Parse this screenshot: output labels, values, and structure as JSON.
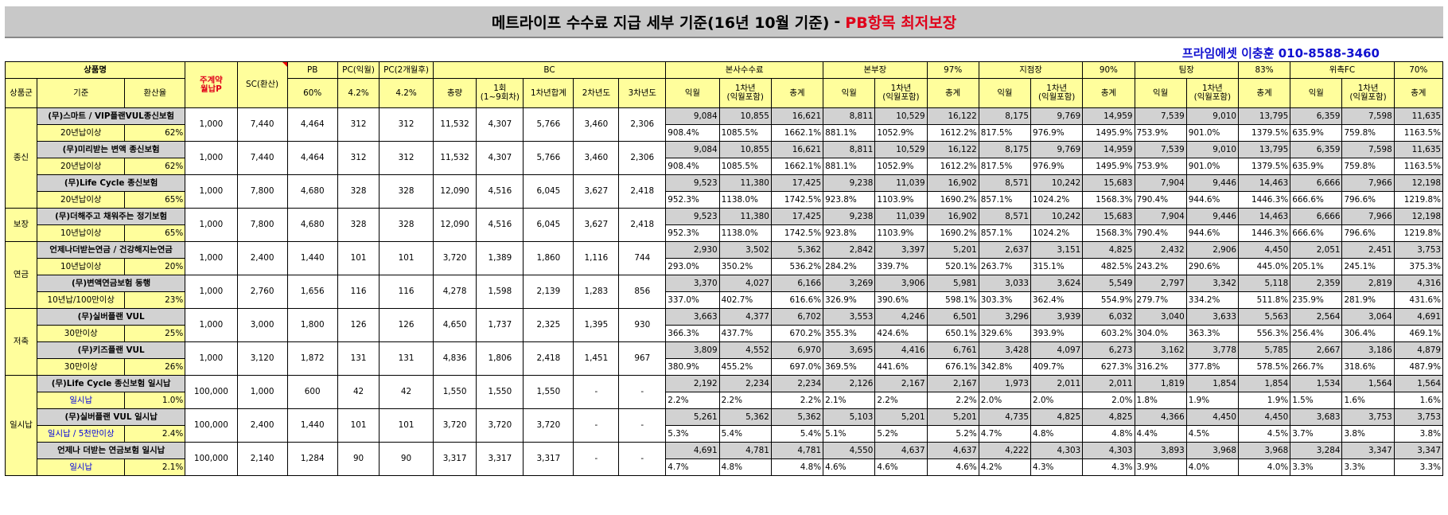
{
  "title": {
    "main": "메트라이프 수수료 지급 세부 기준(16년 10월 기준)",
    "sep": "-",
    "highlight": "PB항목 최저보장"
  },
  "contact": "프라임에셋 이충훈 010-8588-3460",
  "header1": {
    "product": "상품명",
    "premium": "주계약\n월납P",
    "sc": "SC(환산)",
    "pb": "PB",
    "pc1": "PC(익월)",
    "pc2": "PC(2개월후)",
    "bc": "BC",
    "hq": "본사수수료",
    "division": "본부장",
    "division_pct": "97%",
    "branch": "지점장",
    "branch_pct": "90%",
    "team": "팀장",
    "team_pct": "83%",
    "fc": "위촉FC",
    "fc_pct": "70%"
  },
  "header2": {
    "group": "상품군",
    "basis": "기준",
    "rate": "환산율",
    "pb_pct": "60%",
    "pc1_pct": "4.2%",
    "pc2_pct": "4.2%",
    "total": "총량",
    "first": "1회\n(1~9회차)",
    "y1": "1차년합계",
    "y2": "2차년도",
    "y3": "3차년도",
    "next": "익월",
    "year1": "1차년\n(익월포함)",
    "sum": "총계"
  },
  "groups": [
    {
      "label": "종신",
      "products": [
        {
          "name": "(무)스마트 / VIP플랜VUL종신보험",
          "basis": "20년납이상",
          "rate": "62%",
          "premium": "1,000",
          "sc": "7,440",
          "pb": "4,464",
          "pc1": "312",
          "pc2": "312",
          "bc": [
            "11,532",
            "4,307",
            "5,766",
            "3,460",
            "2,306"
          ],
          "amt": [
            "9,084",
            "10,855",
            "16,621",
            "8,811",
            "10,529",
            "16,122",
            "8,175",
            "9,769",
            "14,959",
            "7,539",
            "9,010",
            "13,795",
            "6,359",
            "7,598",
            "11,635"
          ],
          "pct": [
            "908.4%",
            "1085.5%",
            "1662.1%",
            "881.1%",
            "1052.9%",
            "1612.2%",
            "817.5%",
            "976.9%",
            "1495.9%",
            "753.9%",
            "901.0%",
            "1379.5%",
            "635.9%",
            "759.8%",
            "1163.5%"
          ]
        },
        {
          "name": "(무)미리받는 변액 종신보험",
          "basis": "20년납이상",
          "rate": "62%",
          "premium": "1,000",
          "sc": "7,440",
          "pb": "4,464",
          "pc1": "312",
          "pc2": "312",
          "bc": [
            "11,532",
            "4,307",
            "5,766",
            "3,460",
            "2,306"
          ],
          "amt": [
            "9,084",
            "10,855",
            "16,621",
            "8,811",
            "10,529",
            "16,122",
            "8,175",
            "9,769",
            "14,959",
            "7,539",
            "9,010",
            "13,795",
            "6,359",
            "7,598",
            "11,635"
          ],
          "pct": [
            "908.4%",
            "1085.5%",
            "1662.1%",
            "881.1%",
            "1052.9%",
            "1612.2%",
            "817.5%",
            "976.9%",
            "1495.9%",
            "753.9%",
            "901.0%",
            "1379.5%",
            "635.9%",
            "759.8%",
            "1163.5%"
          ]
        },
        {
          "name": "(무)Life Cycle 종신보험",
          "basis": "20년납이상",
          "rate": "65%",
          "premium": "1,000",
          "sc": "7,800",
          "pb": "4,680",
          "pc1": "328",
          "pc2": "328",
          "bc": [
            "12,090",
            "4,516",
            "6,045",
            "3,627",
            "2,418"
          ],
          "amt": [
            "9,523",
            "11,380",
            "17,425",
            "9,238",
            "11,039",
            "16,902",
            "8,571",
            "10,242",
            "15,683",
            "7,904",
            "9,446",
            "14,463",
            "6,666",
            "7,966",
            "12,198"
          ],
          "pct": [
            "952.3%",
            "1138.0%",
            "1742.5%",
            "923.8%",
            "1103.9%",
            "1690.2%",
            "857.1%",
            "1024.2%",
            "1568.3%",
            "790.4%",
            "944.6%",
            "1446.3%",
            "666.6%",
            "796.6%",
            "1219.8%"
          ]
        }
      ]
    },
    {
      "label": "보장",
      "products": [
        {
          "name": "(무)더해주고 채워주는 정기보험",
          "basis": "10년납이상",
          "rate": "65%",
          "premium": "1,000",
          "sc": "7,800",
          "pb": "4,680",
          "pc1": "328",
          "pc2": "328",
          "bc": [
            "12,090",
            "4,516",
            "6,045",
            "3,627",
            "2,418"
          ],
          "amt": [
            "9,523",
            "11,380",
            "17,425",
            "9,238",
            "11,039",
            "16,902",
            "8,571",
            "10,242",
            "15,683",
            "7,904",
            "9,446",
            "14,463",
            "6,666",
            "7,966",
            "12,198"
          ],
          "pct": [
            "952.3%",
            "1138.0%",
            "1742.5%",
            "923.8%",
            "1103.9%",
            "1690.2%",
            "857.1%",
            "1024.2%",
            "1568.3%",
            "790.4%",
            "944.6%",
            "1446.3%",
            "666.6%",
            "796.6%",
            "1219.8%"
          ]
        }
      ]
    },
    {
      "label": "연금",
      "products": [
        {
          "name": "언제나더받는연금 / 건강해지는연금",
          "basis": "10년납이상",
          "rate": "20%",
          "premium": "1,000",
          "sc": "2,400",
          "pb": "1,440",
          "pc1": "101",
          "pc2": "101",
          "bc": [
            "3,720",
            "1,389",
            "1,860",
            "1,116",
            "744"
          ],
          "amt": [
            "2,930",
            "3,502",
            "5,362",
            "2,842",
            "3,397",
            "5,201",
            "2,637",
            "3,151",
            "4,825",
            "2,432",
            "2,906",
            "4,450",
            "2,051",
            "2,451",
            "3,753"
          ],
          "pct": [
            "293.0%",
            "350.2%",
            "536.2%",
            "284.2%",
            "339.7%",
            "520.1%",
            "263.7%",
            "315.1%",
            "482.5%",
            "243.2%",
            "290.6%",
            "445.0%",
            "205.1%",
            "245.1%",
            "375.3%"
          ]
        },
        {
          "name": "(무)변액연금보험 동행",
          "basis": "10년납/100만이상",
          "rate": "23%",
          "premium": "1,000",
          "sc": "2,760",
          "pb": "1,656",
          "pc1": "116",
          "pc2": "116",
          "bc": [
            "4,278",
            "1,598",
            "2,139",
            "1,283",
            "856"
          ],
          "amt": [
            "3,370",
            "4,027",
            "6,166",
            "3,269",
            "3,906",
            "5,981",
            "3,033",
            "3,624",
            "5,549",
            "2,797",
            "3,342",
            "5,118",
            "2,359",
            "2,819",
            "4,316"
          ],
          "pct": [
            "337.0%",
            "402.7%",
            "616.6%",
            "326.9%",
            "390.6%",
            "598.1%",
            "303.3%",
            "362.4%",
            "554.9%",
            "279.7%",
            "334.2%",
            "511.8%",
            "235.9%",
            "281.9%",
            "431.6%"
          ]
        }
      ]
    },
    {
      "label": "저축",
      "products": [
        {
          "name": "(무)실버플랜 VUL",
          "basis": "30만이상",
          "rate": "25%",
          "premium": "1,000",
          "sc": "3,000",
          "pb": "1,800",
          "pc1": "126",
          "pc2": "126",
          "bc": [
            "4,650",
            "1,737",
            "2,325",
            "1,395",
            "930"
          ],
          "amt": [
            "3,663",
            "4,377",
            "6,702",
            "3,553",
            "4,246",
            "6,501",
            "3,296",
            "3,939",
            "6,032",
            "3,040",
            "3,633",
            "5,563",
            "2,564",
            "3,064",
            "4,691"
          ],
          "pct": [
            "366.3%",
            "437.7%",
            "670.2%",
            "355.3%",
            "424.6%",
            "650.1%",
            "329.6%",
            "393.9%",
            "603.2%",
            "304.0%",
            "363.3%",
            "556.3%",
            "256.4%",
            "306.4%",
            "469.1%"
          ]
        },
        {
          "name": "(무)키즈플랜 VUL",
          "basis": "30만이상",
          "rate": "26%",
          "premium": "1,000",
          "sc": "3,120",
          "pb": "1,872",
          "pc1": "131",
          "pc2": "131",
          "bc": [
            "4,836",
            "1,806",
            "2,418",
            "1,451",
            "967"
          ],
          "amt": [
            "3,809",
            "4,552",
            "6,970",
            "3,695",
            "4,416",
            "6,761",
            "3,428",
            "4,097",
            "6,273",
            "3,162",
            "3,778",
            "5,785",
            "2,667",
            "3,186",
            "4,879"
          ],
          "pct": [
            "380.9%",
            "455.2%",
            "697.0%",
            "369.5%",
            "441.6%",
            "676.1%",
            "342.8%",
            "409.7%",
            "627.3%",
            "316.2%",
            "377.8%",
            "578.5%",
            "266.7%",
            "318.6%",
            "487.9%"
          ]
        }
      ]
    },
    {
      "label": "일시납",
      "products": [
        {
          "name": "(무)Life Cycle 종신보험 일시납",
          "basis": "일시납",
          "rate": "1.0%",
          "premium": "100,000",
          "sc": "1,000",
          "pb": "600",
          "pc1": "42",
          "pc2": "42",
          "bc": [
            "1,550",
            "1,550",
            "1,550",
            "-",
            "-"
          ],
          "amt": [
            "2,192",
            "2,234",
            "2,234",
            "2,126",
            "2,167",
            "2,167",
            "1,973",
            "2,011",
            "2,011",
            "1,819",
            "1,854",
            "1,854",
            "1,534",
            "1,564",
            "1,564"
          ],
          "pct": [
            "2.2%",
            "2.2%",
            "2.2%",
            "2.1%",
            "2.2%",
            "2.2%",
            "2.0%",
            "2.0%",
            "2.0%",
            "1.8%",
            "1.9%",
            "1.9%",
            "1.5%",
            "1.6%",
            "1.6%"
          ]
        },
        {
          "name": "(무)실버플랜 VUL 일시납",
          "basis": "일시납 / 5천만이상",
          "rate": "2.4%",
          "premium": "100,000",
          "sc": "2,400",
          "pb": "1,440",
          "pc1": "101",
          "pc2": "101",
          "bc": [
            "3,720",
            "3,720",
            "3,720",
            "-",
            "-"
          ],
          "amt": [
            "5,261",
            "5,362",
            "5,362",
            "5,103",
            "5,201",
            "5,201",
            "4,735",
            "4,825",
            "4,825",
            "4,366",
            "4,450",
            "4,450",
            "3,683",
            "3,753",
            "3,753"
          ],
          "pct": [
            "5.3%",
            "5.4%",
            "5.4%",
            "5.1%",
            "5.2%",
            "5.2%",
            "4.7%",
            "4.8%",
            "4.8%",
            "4.4%",
            "4.5%",
            "4.5%",
            "3.7%",
            "3.8%",
            "3.8%"
          ]
        },
        {
          "name": "언제나 더받는 연금보험 일시납",
          "basis": "일시납",
          "rate": "2.1%",
          "premium": "100,000",
          "sc": "2,140",
          "pb": "1,284",
          "pc1": "90",
          "pc2": "90",
          "bc": [
            "3,317",
            "3,317",
            "3,317",
            "-",
            "-"
          ],
          "amt": [
            "4,691",
            "4,781",
            "4,781",
            "4,550",
            "4,637",
            "4,637",
            "4,222",
            "4,303",
            "4,303",
            "3,893",
            "3,968",
            "3,968",
            "3,284",
            "3,347",
            "3,347"
          ],
          "pct": [
            "4.7%",
            "4.8%",
            "4.8%",
            "4.6%",
            "4.6%",
            "4.6%",
            "4.2%",
            "4.3%",
            "4.3%",
            "3.9%",
            "4.0%",
            "4.0%",
            "3.3%",
            "3.3%",
            "3.3%"
          ]
        }
      ]
    }
  ]
}
